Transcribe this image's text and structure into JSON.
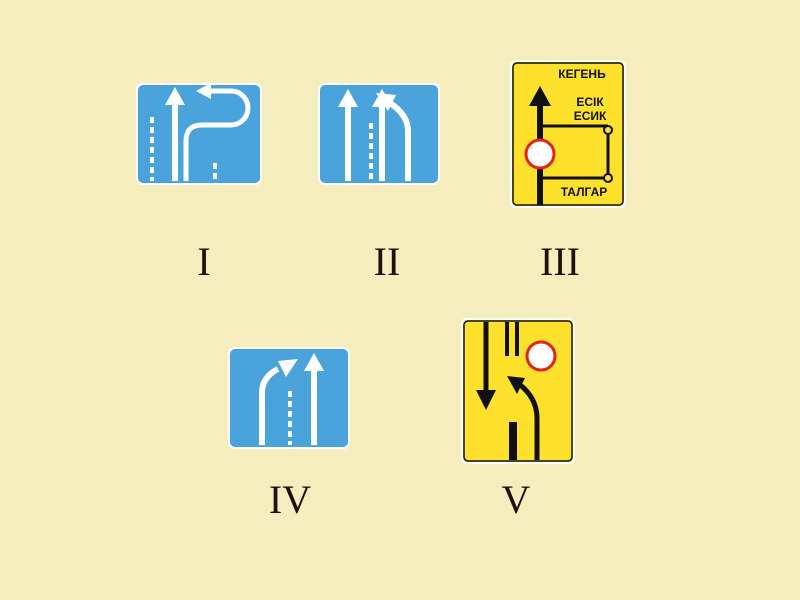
{
  "colors": {
    "background": "#f5edbd",
    "blue_sign": "#4aa3da",
    "yellow_sign": "#fde12d",
    "sign_border": "#ffffff",
    "marking": "#ffffff",
    "road": "#111111",
    "prohibition_ring": "#e2231a"
  },
  "signs": [
    {
      "id": "I",
      "label": "I",
      "icon": "lane-direction-u-turn-sign"
    },
    {
      "id": "II",
      "label": "II",
      "icon": "lane-direction-straight-left-sign"
    },
    {
      "id": "III",
      "label": "III",
      "icon": "detour-route-scheme-sign",
      "texts": {
        "top": "КЕГЕНЬ",
        "middle_1": "ЕСІК",
        "middle_2": "ЕСИК",
        "bottom": "ТАЛГАР"
      }
    },
    {
      "id": "IV",
      "label": "IV",
      "icon": "lane-merge-sign"
    },
    {
      "id": "V",
      "label": "V",
      "icon": "temporary-lane-shift-sign"
    }
  ]
}
